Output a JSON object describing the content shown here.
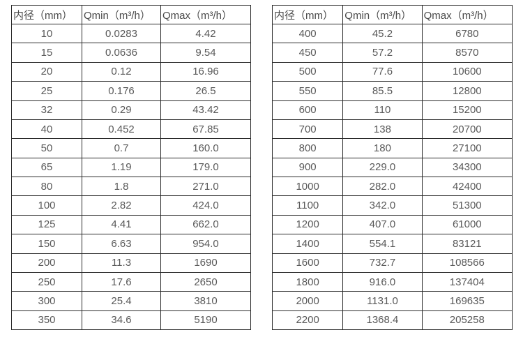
{
  "colors": {
    "border": "#2b2b2b",
    "text": "#595959",
    "header_text": "#4a4a4a",
    "background": "#ffffff"
  },
  "columns": [
    "内径（mm）",
    "Qmin（m³/h）",
    "Qmax（m³/h）"
  ],
  "left_table": {
    "rows": [
      [
        "10",
        "0.0283",
        "4.42"
      ],
      [
        "15",
        "0.0636",
        "9.54"
      ],
      [
        "20",
        "0.12",
        "16.96"
      ],
      [
        "25",
        "0.176",
        "26.5"
      ],
      [
        "32",
        "0.29",
        "43.42"
      ],
      [
        "40",
        "0.452",
        "67.85"
      ],
      [
        "50",
        "0.7",
        "160.0"
      ],
      [
        "65",
        "1.19",
        "179.0"
      ],
      [
        "80",
        "1.8",
        "271.0"
      ],
      [
        "100",
        "2.82",
        "424.0"
      ],
      [
        "125",
        "4.41",
        "662.0"
      ],
      [
        "150",
        "6.63",
        "954.0"
      ],
      [
        "200",
        "11.3",
        "1690"
      ],
      [
        "250",
        "17.6",
        "2650"
      ],
      [
        "300",
        "25.4",
        "3810"
      ],
      [
        "350",
        "34.6",
        "5190"
      ]
    ]
  },
  "right_table": {
    "rows": [
      [
        "400",
        "45.2",
        "6780"
      ],
      [
        "450",
        "57.2",
        "8570"
      ],
      [
        "500",
        "77.6",
        "10600"
      ],
      [
        "550",
        "85.5",
        "12800"
      ],
      [
        "600",
        "110",
        "15200"
      ],
      [
        "700",
        "138",
        "20700"
      ],
      [
        "800",
        "180",
        "27100"
      ],
      [
        "900",
        "229.0",
        "34300"
      ],
      [
        "1000",
        "282.0",
        "42400"
      ],
      [
        "1100",
        "342.0",
        "51300"
      ],
      [
        "1200",
        "407.0",
        "61000"
      ],
      [
        "1400",
        "554.1",
        "83121"
      ],
      [
        "1600",
        "732.7",
        "108566"
      ],
      [
        "1800",
        "916.0",
        "137404"
      ],
      [
        "2000",
        "1131.0",
        "169635"
      ],
      [
        "2200",
        "1368.4",
        "205258"
      ]
    ]
  },
  "chart_data": {
    "type": "table",
    "title": "",
    "columns": [
      "内径（mm）",
      "Qmin（m³/h）",
      "Qmax（m³/h）"
    ],
    "rows": [
      [
        10,
        0.0283,
        4.42
      ],
      [
        15,
        0.0636,
        9.54
      ],
      [
        20,
        0.12,
        16.96
      ],
      [
        25,
        0.176,
        26.5
      ],
      [
        32,
        0.29,
        43.42
      ],
      [
        40,
        0.452,
        67.85
      ],
      [
        50,
        0.7,
        160.0
      ],
      [
        65,
        1.19,
        179.0
      ],
      [
        80,
        1.8,
        271.0
      ],
      [
        100,
        2.82,
        424.0
      ],
      [
        125,
        4.41,
        662.0
      ],
      [
        150,
        6.63,
        954.0
      ],
      [
        200,
        11.3,
        1690
      ],
      [
        250,
        17.6,
        2650
      ],
      [
        300,
        25.4,
        3810
      ],
      [
        350,
        34.6,
        5190
      ],
      [
        400,
        45.2,
        6780
      ],
      [
        450,
        57.2,
        8570
      ],
      [
        500,
        77.6,
        10600
      ],
      [
        550,
        85.5,
        12800
      ],
      [
        600,
        110,
        15200
      ],
      [
        700,
        138,
        20700
      ],
      [
        800,
        180,
        27100
      ],
      [
        900,
        229.0,
        34300
      ],
      [
        1000,
        282.0,
        42400
      ],
      [
        1100,
        342.0,
        51300
      ],
      [
        1200,
        407.0,
        61000
      ],
      [
        1400,
        554.1,
        83121
      ],
      [
        1600,
        732.7,
        108566
      ],
      [
        1800,
        916.0,
        137404
      ],
      [
        2000,
        1131.0,
        169635
      ],
      [
        2200,
        1368.4,
        205258
      ]
    ]
  }
}
